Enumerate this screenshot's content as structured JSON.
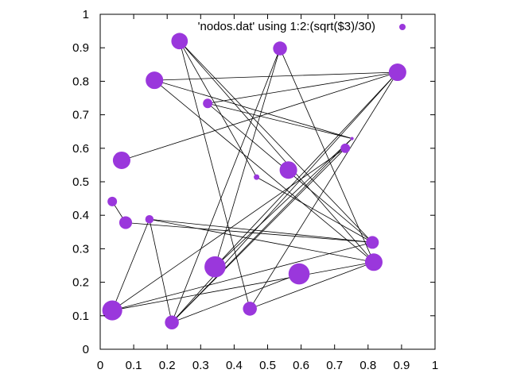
{
  "chart_data": {
    "type": "scatter",
    "legend": {
      "label": "'nodos.dat' using 1:2:(sqrt($3)/30)",
      "placement": "top-right"
    },
    "xlim": [
      0,
      1
    ],
    "ylim": [
      0,
      1
    ],
    "x_ticks": [
      "0",
      "0.1",
      "0.2",
      "0.3",
      "0.4",
      "0.5",
      "0.6",
      "0.7",
      "0.8",
      "0.9",
      "1"
    ],
    "y_ticks": [
      "0",
      "0.1",
      "0.2",
      "0.3",
      "0.4",
      "0.5",
      "0.6",
      "0.7",
      "0.8",
      "0.9",
      "1"
    ],
    "grid": false,
    "colors": {
      "point": "#9a37dc",
      "edge": "#000000"
    },
    "nodes": [
      {
        "x": 0.237,
        "y": 0.92,
        "r": 0.0246
      },
      {
        "x": 0.537,
        "y": 0.898,
        "r": 0.0208
      },
      {
        "x": 0.888,
        "y": 0.827,
        "r": 0.0262
      },
      {
        "x": 0.162,
        "y": 0.803,
        "r": 0.0262
      },
      {
        "x": 0.321,
        "y": 0.734,
        "r": 0.0142
      },
      {
        "x": 0.752,
        "y": 0.629,
        "r": 0.005
      },
      {
        "x": 0.732,
        "y": 0.6,
        "r": 0.0142
      },
      {
        "x": 0.064,
        "y": 0.564,
        "r": 0.0262
      },
      {
        "x": 0.562,
        "y": 0.535,
        "r": 0.0262
      },
      {
        "x": 0.467,
        "y": 0.514,
        "r": 0.0083
      },
      {
        "x": 0.036,
        "y": 0.441,
        "r": 0.0142
      },
      {
        "x": 0.147,
        "y": 0.388,
        "r": 0.0125
      },
      {
        "x": 0.076,
        "y": 0.378,
        "r": 0.0191
      },
      {
        "x": 0.813,
        "y": 0.319,
        "r": 0.0191
      },
      {
        "x": 0.817,
        "y": 0.26,
        "r": 0.0262
      },
      {
        "x": 0.343,
        "y": 0.246,
        "r": 0.0316
      },
      {
        "x": 0.594,
        "y": 0.225,
        "r": 0.0316
      },
      {
        "x": 0.036,
        "y": 0.116,
        "r": 0.0298
      },
      {
        "x": 0.447,
        "y": 0.121,
        "r": 0.0208
      },
      {
        "x": 0.214,
        "y": 0.08,
        "r": 0.0208
      }
    ],
    "edges": [
      [
        0,
        13
      ],
      [
        0,
        14
      ],
      [
        0,
        9
      ],
      [
        0,
        18
      ],
      [
        1,
        15
      ],
      [
        1,
        19
      ],
      [
        1,
        14
      ],
      [
        2,
        3
      ],
      [
        2,
        4
      ],
      [
        2,
        7
      ],
      [
        2,
        15
      ],
      [
        2,
        19
      ],
      [
        2,
        18
      ],
      [
        3,
        5
      ],
      [
        3,
        14
      ],
      [
        4,
        5
      ],
      [
        4,
        13
      ],
      [
        5,
        15
      ],
      [
        5,
        19
      ],
      [
        6,
        17
      ],
      [
        6,
        19
      ],
      [
        9,
        13
      ],
      [
        10,
        12
      ],
      [
        11,
        19
      ],
      [
        11,
        13
      ],
      [
        11,
        17
      ],
      [
        11,
        14
      ],
      [
        12,
        13
      ],
      [
        13,
        17
      ],
      [
        14,
        18
      ],
      [
        14,
        17
      ],
      [
        16,
        19
      ]
    ]
  }
}
